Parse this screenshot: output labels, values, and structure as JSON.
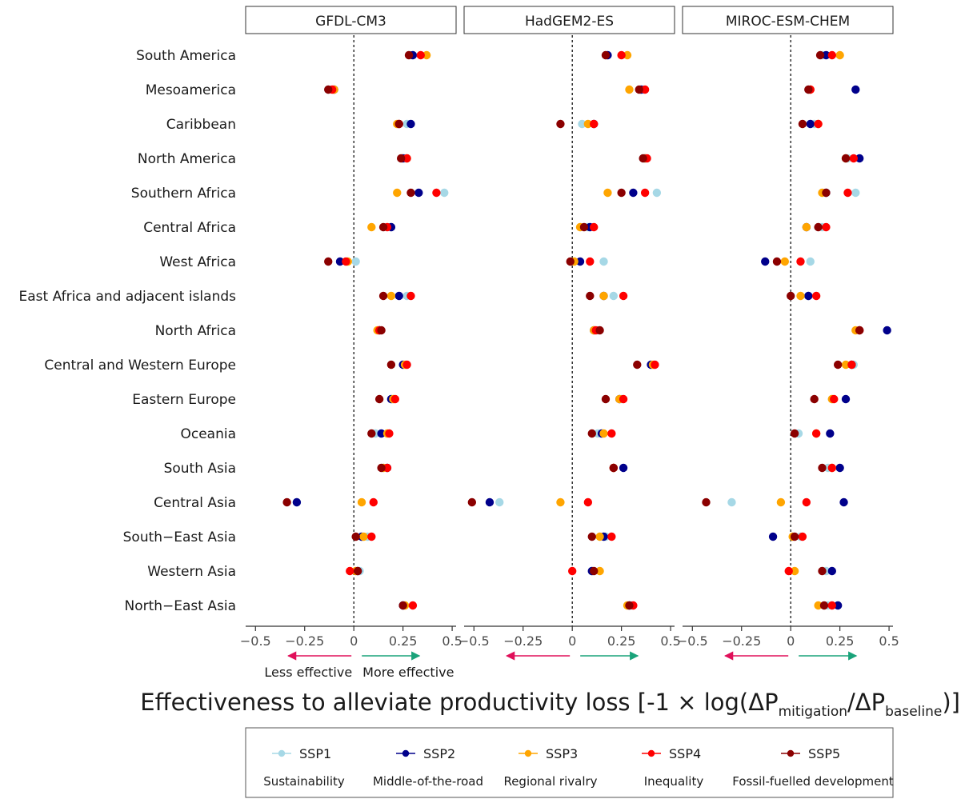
{
  "chart_data": {
    "type": "scatter",
    "xlabel": {
      "main": "Effectiveness to alleviate productivity loss [-1 × log(ΔP",
      "sub1": "mitigation",
      "mid": "/ΔP",
      "sub2": "baseline",
      "end": ")]"
    },
    "xlim": [
      -0.55,
      0.52
    ],
    "x_ticks": [
      -0.5,
      -0.25,
      0,
      0.25,
      0.5
    ],
    "x_tick_labels": [
      "−0.5",
      "−0.25",
      "0",
      "0.25",
      "0.5"
    ],
    "effect_labels": {
      "less": "Less effective",
      "more": "More effective"
    },
    "panels": [
      "GFDL-CM3",
      "HadGEM2-ES",
      "MIROC-ESM-CHEM"
    ],
    "regions": [
      "South America",
      "Mesoamerica",
      "Caribbean",
      "North America",
      "Southern Africa",
      "Central Africa",
      "West Africa",
      "East Africa and adjacent islands",
      "North Africa",
      "Central and Western Europe",
      "Eastern Europe",
      "Oceania",
      "South Asia",
      "Central Asia",
      "South−East Asia",
      "Western Asia",
      "North−East Asia"
    ],
    "series": [
      {
        "name": "SSP1",
        "description": "Sustainability",
        "color": "#a6d8e6",
        "values": [
          [
            0.29,
            -0.13,
            0.27,
            0.26,
            0.46,
            0.19,
            0.01,
            0.27,
            0.13,
            0.27,
            0.2,
            0.11,
            0.15,
            -0.29,
            0.07,
            0.03,
            0.25
          ],
          [
            0.17,
            0.36,
            0.05,
            0.36,
            0.43,
            0.08,
            0.16,
            0.21,
            0.13,
            0.42,
            0.25,
            0.13,
            0.21,
            -0.37,
            0.17,
            0.1,
            0.3
          ],
          [
            0.16,
            0.09,
            0.12,
            0.29,
            0.33,
            0.16,
            0.1,
            0.09,
            0.35,
            0.32,
            0.21,
            0.04,
            0.19,
            -0.3,
            0.05,
            0.18,
            0.19
          ]
        ]
      },
      {
        "name": "SSP2",
        "description": "Middle-of-the-road",
        "color": "#00008b",
        "values": [
          [
            0.3,
            -0.1,
            0.29,
            0.25,
            0.33,
            0.19,
            -0.07,
            0.23,
            0.13,
            0.25,
            0.19,
            0.14,
            0.17,
            -0.29,
            0.04,
            0.02,
            0.25
          ],
          [
            0.18,
            0.35,
            0.11,
            0.37,
            0.31,
            0.09,
            0.04,
            0.16,
            0.11,
            0.4,
            0.24,
            0.15,
            0.26,
            -0.42,
            0.16,
            0.1,
            0.29
          ],
          [
            0.18,
            0.33,
            0.1,
            0.35,
            0.18,
            0.08,
            -0.13,
            0.09,
            0.49,
            0.31,
            0.28,
            0.2,
            0.25,
            0.27,
            -0.09,
            0.21,
            0.24
          ]
        ]
      },
      {
        "name": "SSP3",
        "description": "Regional rivalry",
        "color": "#ffa500",
        "values": [
          [
            0.37,
            -0.1,
            0.22,
            0.27,
            0.22,
            0.09,
            -0.03,
            0.19,
            0.12,
            0.26,
            0.2,
            0.17,
            0.15,
            0.04,
            0.05,
            0.01,
            0.26
          ],
          [
            0.28,
            0.29,
            0.08,
            0.37,
            0.18,
            0.04,
            0.01,
            0.16,
            0.11,
            0.41,
            0.24,
            0.16,
            0.21,
            -0.06,
            0.14,
            0.14,
            0.28
          ],
          [
            0.25,
            0.1,
            0.14,
            0.28,
            0.16,
            0.08,
            -0.03,
            0.05,
            0.33,
            0.28,
            0.21,
            0.13,
            0.21,
            -0.05,
            0.01,
            0.02,
            0.14
          ]
        ]
      },
      {
        "name": "SSP4",
        "description": "Inequality",
        "color": "#ff0000",
        "values": [
          [
            0.34,
            -0.11,
            0.23,
            0.27,
            0.42,
            0.17,
            -0.04,
            0.29,
            0.13,
            0.27,
            0.21,
            0.18,
            0.17,
            0.1,
            0.09,
            -0.02,
            0.3
          ],
          [
            0.25,
            0.37,
            0.11,
            0.38,
            0.37,
            0.11,
            0.09,
            0.26,
            0.12,
            0.42,
            0.26,
            0.2,
            0.21,
            0.08,
            0.2,
            0.0,
            0.31
          ],
          [
            0.21,
            0.1,
            0.14,
            0.32,
            0.29,
            0.18,
            0.05,
            0.13,
            0.35,
            0.31,
            0.22,
            0.13,
            0.21,
            0.08,
            0.06,
            -0.01,
            0.21
          ]
        ]
      },
      {
        "name": "SSP5",
        "description": "Fossil-fuelled development",
        "color": "#8b0000",
        "values": [
          [
            0.28,
            -0.13,
            0.23,
            0.24,
            0.29,
            0.15,
            -0.13,
            0.15,
            0.14,
            0.19,
            0.13,
            0.09,
            0.14,
            -0.34,
            0.01,
            0.02,
            0.25
          ],
          [
            0.17,
            0.34,
            -0.06,
            0.36,
            0.25,
            0.06,
            -0.01,
            0.09,
            0.14,
            0.33,
            0.17,
            0.1,
            0.21,
            -0.51,
            0.1,
            0.11,
            0.29
          ],
          [
            0.15,
            0.09,
            0.06,
            0.28,
            0.18,
            0.14,
            -0.07,
            0.0,
            0.35,
            0.24,
            0.12,
            0.02,
            0.16,
            -0.43,
            0.02,
            0.16,
            0.17
          ]
        ]
      }
    ],
    "legend_placement": "bottom",
    "grid": false
  }
}
